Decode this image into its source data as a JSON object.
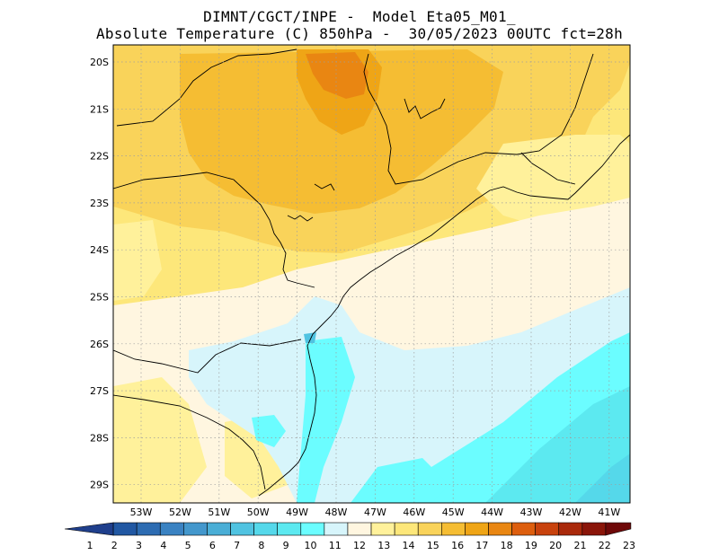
{
  "header": {
    "line1": "DIMNT/CGCT/INPE -  Model Eta05_M01_",
    "line2": "Absolute Temperature (C) 850hPa -  30/05/2023 00UTC fct=28h"
  },
  "map": {
    "lat_labels": [
      "20S",
      "21S",
      "22S",
      "23S",
      "24S",
      "25S",
      "26S",
      "27S",
      "28S",
      "29S"
    ],
    "lon_labels": [
      "53W",
      "52W",
      "51W",
      "50W",
      "49W",
      "48W",
      "47W",
      "46W",
      "45W",
      "44W",
      "43W",
      "42W",
      "41W"
    ],
    "grid_lines": "dotted",
    "coastline_color": "#000000"
  },
  "colorbar": {
    "labels": [
      "1",
      "2",
      "3",
      "4",
      "5",
      "6",
      "7",
      "8",
      "9",
      "10",
      "11",
      "12",
      "13",
      "14",
      "15",
      "16",
      "17",
      "18",
      "19",
      "20",
      "21",
      "22",
      "23"
    ],
    "colors": [
      "#1f3f8c",
      "#2158a3",
      "#2d6cb2",
      "#3a82c2",
      "#4397cc",
      "#4aaed6",
      "#50c3e1",
      "#55d8ea",
      "#5ce9f0",
      "#6bfdff",
      "#d7f5fb",
      "#fff6e0",
      "#fff19b",
      "#fde77a",
      "#f9d35a",
      "#f5bd33",
      "#efa516",
      "#e98612",
      "#dd5e0e",
      "#c8420d",
      "#a9290b",
      "#8a1509",
      "#6e0808"
    ]
  }
}
